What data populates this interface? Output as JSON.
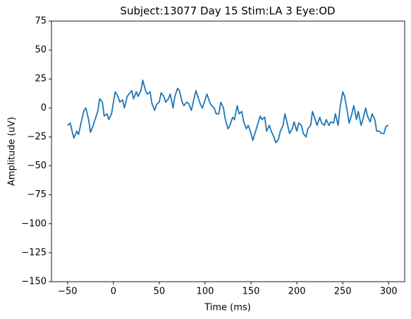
{
  "chart_data": {
    "type": "line",
    "title": "Subject:13077 Day 15 Stim:LA 3 Eye:OD",
    "x_label": "Time (ms)",
    "y_label": "Amplitude (uV)",
    "x": [
      -50,
      -47,
      -45,
      -43,
      -40,
      -38,
      -35,
      -32,
      -30,
      -27,
      -25,
      -22,
      -20,
      -17,
      -15,
      -12,
      -10,
      -7,
      -5,
      -2,
      0,
      2,
      5,
      7,
      10,
      12,
      15,
      17,
      20,
      22,
      25,
      27,
      30,
      32,
      35,
      37,
      40,
      42,
      45,
      47,
      50,
      52,
      55,
      57,
      60,
      62,
      65,
      67,
      70,
      72,
      75,
      77,
      80,
      82,
      85,
      87,
      90,
      92,
      95,
      97,
      100,
      102,
      105,
      107,
      110,
      112,
      115,
      117,
      120,
      122,
      125,
      127,
      130,
      132,
      135,
      137,
      140,
      142,
      145,
      147,
      150,
      152,
      155,
      157,
      160,
      162,
      165,
      167,
      170,
      172,
      175,
      177,
      180,
      182,
      185,
      187,
      190,
      192,
      195,
      197,
      200,
      202,
      205,
      207,
      210,
      212,
      215,
      217,
      220,
      222,
      225,
      227,
      230,
      232,
      235,
      237,
      240,
      242,
      245,
      247,
      250,
      252,
      255,
      257,
      260,
      262,
      265,
      267,
      270,
      272,
      275,
      277,
      280,
      282,
      285,
      287,
      290,
      292,
      295,
      297,
      300
    ],
    "series": [
      {
        "name": "Amplitude",
        "color": "#1f77b4",
        "values": [
          -15,
          -13,
          -20,
          -26,
          -20,
          -23,
          -12,
          -2,
          0,
          -10,
          -21,
          -15,
          -10,
          -3,
          8,
          5,
          -7,
          -5,
          -10,
          -5,
          5,
          14,
          10,
          5,
          7,
          0,
          10,
          12,
          15,
          8,
          14,
          10,
          15,
          24,
          15,
          12,
          14,
          4,
          -2,
          3,
          5,
          13,
          10,
          5,
          8,
          12,
          0,
          10,
          17,
          15,
          5,
          2,
          5,
          4,
          -2,
          5,
          15,
          10,
          3,
          0,
          7,
          12,
          5,
          2,
          0,
          -5,
          -5,
          5,
          0,
          -10,
          -18,
          -15,
          -8,
          -10,
          2,
          -5,
          -3,
          -12,
          -18,
          -15,
          -22,
          -28,
          -20,
          -15,
          -7,
          -10,
          -8,
          -20,
          -15,
          -20,
          -25,
          -30,
          -27,
          -20,
          -15,
          -5,
          -15,
          -22,
          -18,
          -12,
          -20,
          -13,
          -15,
          -22,
          -25,
          -18,
          -15,
          -3,
          -10,
          -15,
          -8,
          -13,
          -15,
          -10,
          -15,
          -12,
          -13,
          -5,
          -15,
          0,
          14,
          10,
          -3,
          -13,
          -5,
          2,
          -10,
          -3,
          -15,
          -10,
          0,
          -7,
          -12,
          -5,
          -10,
          -20,
          -20,
          -22,
          -22,
          -16,
          -15
        ]
      }
    ],
    "xlim": [
      -67.5,
      317.5
    ],
    "xticks": [
      {
        "value": -50,
        "label": "−50"
      },
      0,
      50,
      100,
      150,
      200,
      250,
      300
    ],
    "ylim": [
      -150,
      75
    ],
    "yticks": [
      {
        "value": -150,
        "label": "−150"
      },
      {
        "value": -125,
        "label": "−125"
      },
      {
        "value": -100,
        "label": "−100"
      },
      {
        "value": -75,
        "label": "−75"
      },
      {
        "value": -50,
        "label": "−50"
      },
      {
        "value": -25,
        "label": "−25"
      },
      0,
      25,
      50,
      75
    ],
    "grid": false
  }
}
